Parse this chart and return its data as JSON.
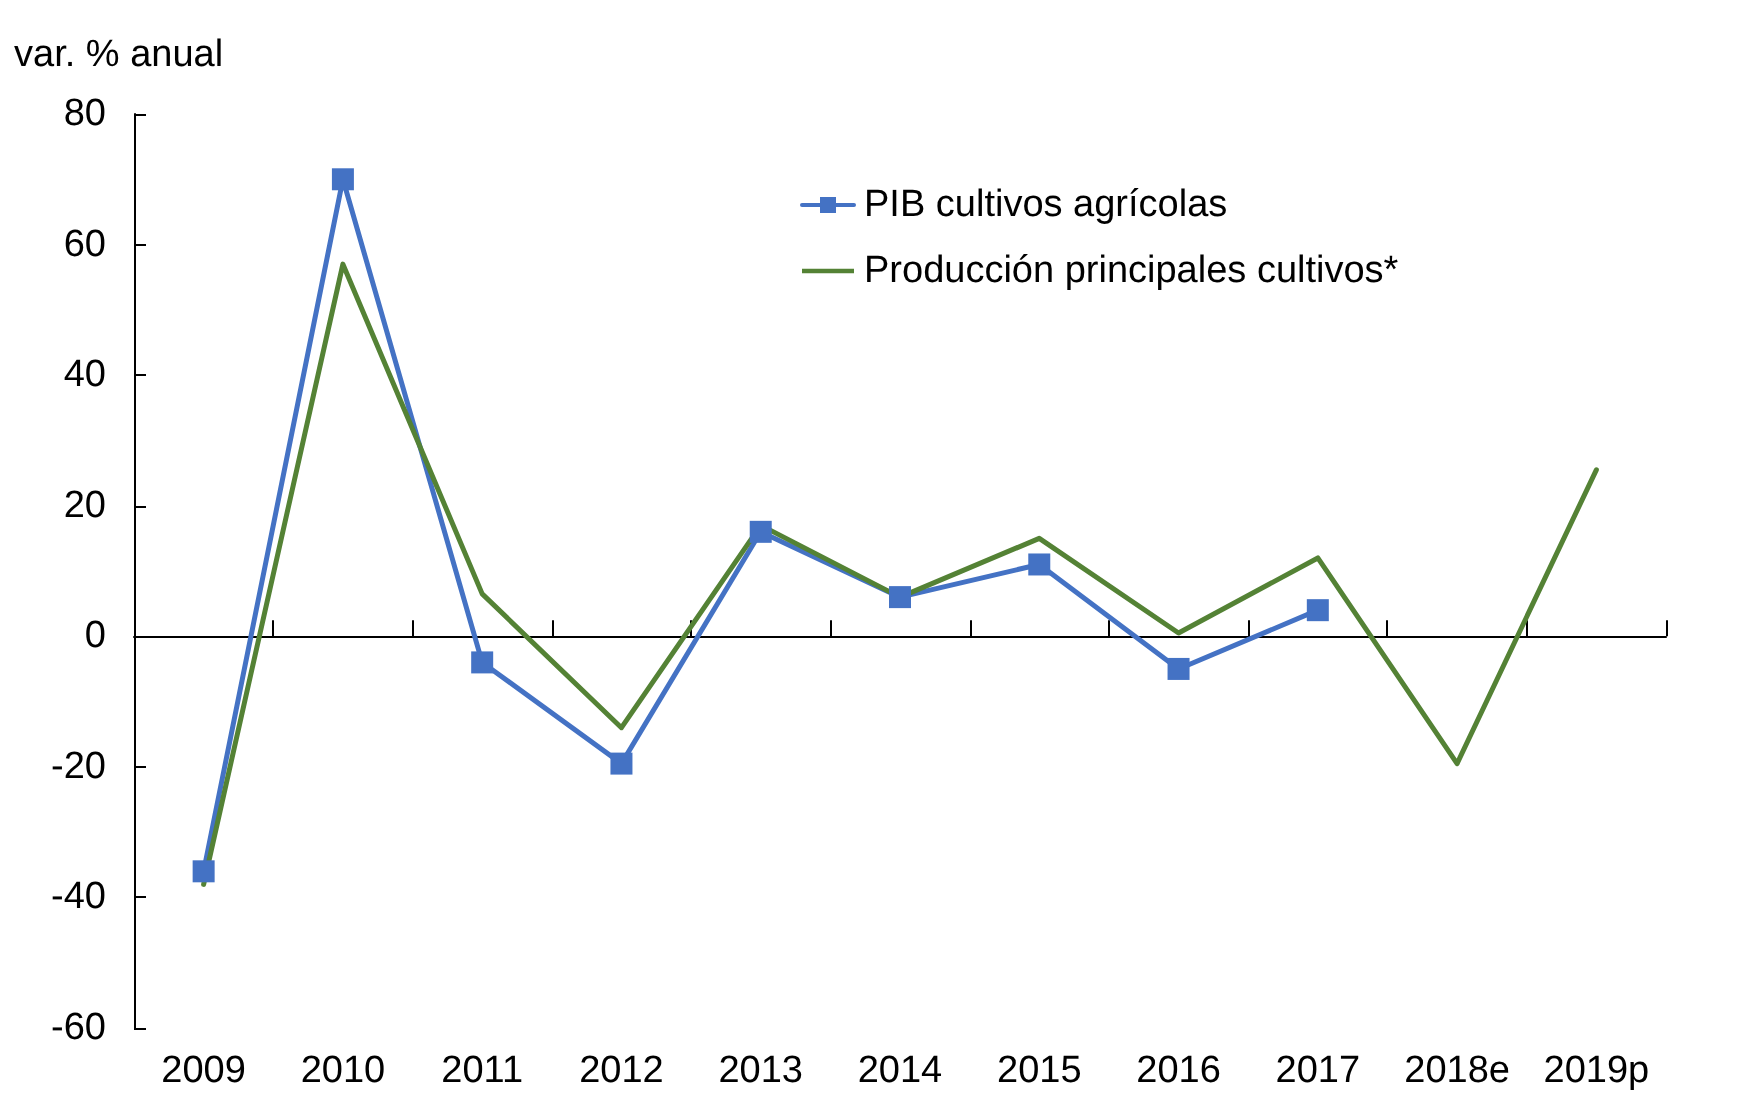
{
  "chart_data": {
    "type": "line",
    "ylabel": "var. % anual",
    "categories": [
      "2009",
      "2010",
      "2011",
      "2012",
      "2013",
      "2014",
      "2015",
      "2016",
      "2017",
      "2018e",
      "2019p"
    ],
    "series": [
      {
        "name": "PIB cultivos agrícolas",
        "color": "#4472c4",
        "marker": "square",
        "values": [
          -36,
          70,
          -4,
          -19.5,
          16,
          6,
          11,
          -5,
          4,
          null,
          null
        ]
      },
      {
        "name": "Producción principales cultivos*",
        "color": "#548235",
        "marker": "none",
        "values": [
          -38,
          57,
          6.5,
          -14,
          17,
          6,
          15,
          0.5,
          12,
          -19.5,
          25.5
        ]
      }
    ],
    "ylim": [
      -60,
      80
    ],
    "yticks": [
      -60,
      -40,
      -20,
      0,
      20,
      40,
      60,
      80
    ],
    "legend": "top right"
  }
}
